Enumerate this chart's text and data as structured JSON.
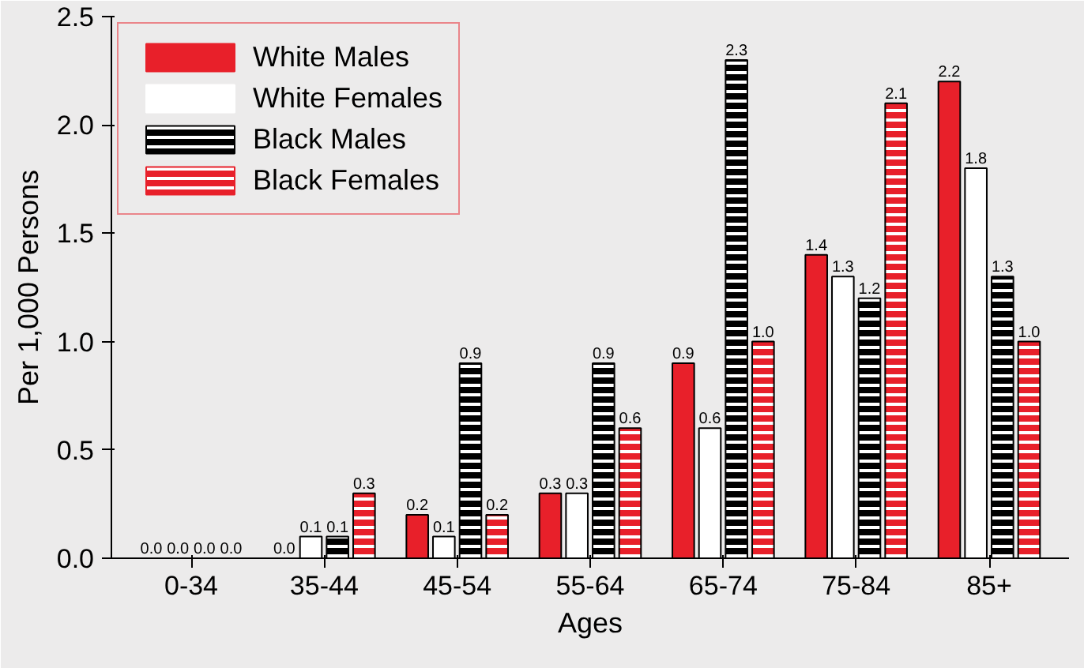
{
  "chart_data": {
    "type": "bar",
    "xlabel": "Ages",
    "ylabel": "Per 1,000 Persons",
    "categories": [
      "0-34",
      "35-44",
      "45-54",
      "55-64",
      "65-74",
      "75-84",
      "85+"
    ],
    "series": [
      {
        "name": "White Males",
        "color": "#e8202a",
        "values": [
          0.0,
          0.0,
          0.2,
          0.3,
          0.9,
          1.4,
          2.2
        ],
        "value_labels": [
          "0.0",
          "0.0",
          "0.2",
          "0.3",
          "0.9",
          "1.4",
          "2.2"
        ]
      },
      {
        "name": "White Females",
        "color": "#ffffff",
        "values": [
          0.0,
          0.1,
          0.1,
          0.3,
          0.6,
          1.3,
          1.8
        ],
        "value_labels": [
          "0.0",
          "0.1",
          "0.1",
          "0.3",
          "0.6",
          "1.3",
          "1.8"
        ]
      },
      {
        "name": "Black Males",
        "color": "#000000",
        "values": [
          0.0,
          0.1,
          0.9,
          0.9,
          2.3,
          1.2,
          1.3
        ],
        "value_labels": [
          "0.0",
          "0.1",
          "0.9",
          "0.9",
          "2.3",
          "1.2",
          "1.3"
        ]
      },
      {
        "name": "Black Females",
        "color": "#e8202a",
        "values": [
          0.0,
          0.3,
          0.2,
          0.6,
          1.0,
          2.1,
          1.0
        ],
        "value_labels": [
          "0.0",
          "0.3",
          "0.2",
          "0.6",
          "1.0",
          "2.1",
          "1.0"
        ]
      }
    ],
    "ylim": [
      0,
      2.5
    ],
    "yticks": [
      {
        "value": 0,
        "label": "0.0"
      },
      {
        "value": 0.5,
        "label": "0.5"
      },
      {
        "value": 1,
        "label": "1.0"
      },
      {
        "value": 1.5,
        "label": "1.5"
      },
      {
        "value": 2,
        "label": "2.0"
      },
      {
        "value": 2.5,
        "label": "2.5"
      }
    ],
    "grid": false,
    "legend": "top left"
  }
}
